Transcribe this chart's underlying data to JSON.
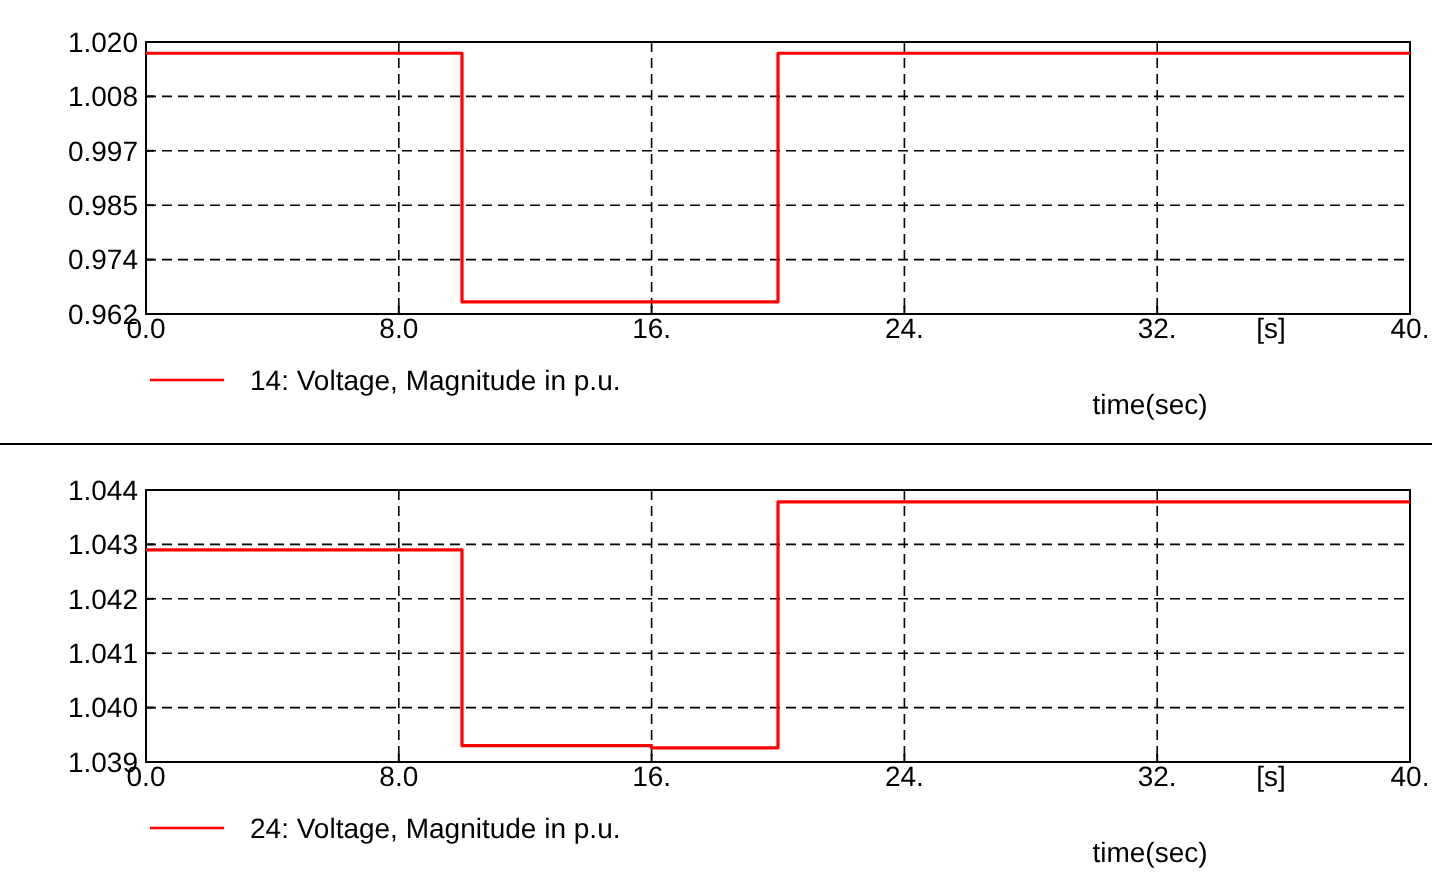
{
  "chart_data": [
    {
      "type": "step",
      "xlabel": "time(sec)",
      "annotations": [
        "[s]"
      ],
      "series": [
        {
          "name": "14: Voltage, Magnitude in p.u.",
          "color": "#ff0000",
          "x": [
            0,
            10,
            20,
            40
          ],
          "values": [
            1.0176,
            0.9646,
            1.0176,
            1.0176
          ]
        }
      ],
      "xlim": [
        0,
        40
      ],
      "xticks": [
        {
          "value": 0,
          "label": "0.0"
        },
        {
          "value": 8,
          "label": "8.0"
        },
        {
          "value": 16,
          "label": "16."
        },
        {
          "value": 24,
          "label": "24."
        },
        {
          "value": 32,
          "label": "32."
        },
        {
          "value": 40,
          "label": "40."
        }
      ],
      "ylim": [
        0.962,
        1.02
      ],
      "yticks": [
        0.962,
        {
          "value": 0.9736,
          "label": "0.974"
        },
        {
          "value": 0.9852,
          "label": "0.985"
        },
        {
          "value": 0.9968,
          "label": "0.997"
        },
        {
          "value": 1.0084,
          "label": "1.008"
        },
        {
          "value": 1.02,
          "label": "1.020"
        }
      ],
      "grid": true,
      "legend": "bottom left",
      "line_style": "solid"
    },
    {
      "type": "step",
      "xlabel": "time(sec)",
      "annotations": [
        "[s]"
      ],
      "series": [
        {
          "name": "24: Voltage, Magnitude in p.u.",
          "color": "#ff0000",
          "x": [
            0,
            10,
            16,
            20,
            40
          ],
          "values": [
            1.0429,
            1.0393,
            1.03926,
            1.04378,
            1.04378
          ]
        }
      ],
      "xlim": [
        0,
        40
      ],
      "xticks": [
        {
          "value": 0,
          "label": "0.0"
        },
        {
          "value": 8,
          "label": "8.0"
        },
        {
          "value": 16,
          "label": "16."
        },
        {
          "value": 24,
          "label": "24."
        },
        {
          "value": 32,
          "label": "32."
        },
        {
          "value": 40,
          "label": "40."
        }
      ],
      "ylim": [
        1.039,
        1.044
      ],
      "yticks": [
        {
          "value": 1.039,
          "label": "1.039"
        },
        {
          "value": 1.04,
          "label": "1.040"
        },
        {
          "value": 1.041,
          "label": "1.041"
        },
        {
          "value": 1.042,
          "label": "1.042"
        },
        {
          "value": 1.043,
          "label": "1.043"
        },
        {
          "value": 1.044,
          "label": "1.044"
        }
      ],
      "grid": true,
      "legend": "bottom left",
      "line_style": "solid"
    }
  ]
}
